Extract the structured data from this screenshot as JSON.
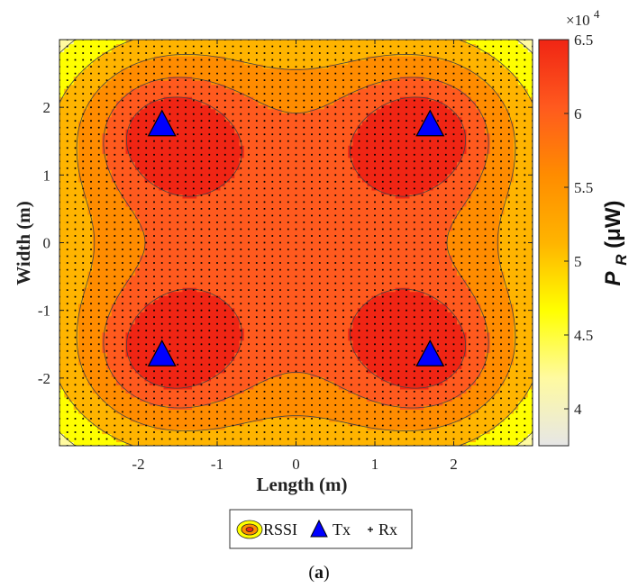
{
  "chart_data": {
    "type": "heatmap",
    "title": "",
    "subtitle": "",
    "xlabel": "Length (m)",
    "ylabel": "Width (m)",
    "xlim": [
      -3,
      3
    ],
    "ylim": [
      -3,
      3
    ],
    "xticks": [
      -2,
      -1,
      0,
      1,
      2
    ],
    "yticks": [
      2,
      1,
      0,
      -1,
      -2
    ],
    "colorbar": {
      "label_main": "P",
      "label_sub": "R",
      "label_unit": " (μW)",
      "multiplier": "×10",
      "multiplier_exp": "4",
      "range": [
        3.75,
        6.5
      ],
      "ticks": [
        4,
        4.5,
        5,
        5.5,
        6,
        6.5
      ],
      "tick_labels": [
        "4",
        "4.5",
        "5",
        "5.5",
        "6",
        "6.5"
      ],
      "colors": [
        "#e6e6e6",
        "#fffaa0",
        "#ffff00",
        "#ffb400",
        "#ff8c00",
        "#ff5a1e",
        "#f02514"
      ]
    },
    "contour_levels": [
      4.0,
      4.5,
      5.0,
      5.5,
      5.9
    ],
    "transmitters": [
      {
        "x": -1.7,
        "y": 1.7
      },
      {
        "x": 1.7,
        "y": 1.7
      },
      {
        "x": -1.7,
        "y": -1.7
      },
      {
        "x": 1.7,
        "y": -1.7
      }
    ],
    "receiver_grid": {
      "spacing": 0.1,
      "x_range": [
        -3,
        3
      ],
      "y_range": [
        -3,
        3
      ]
    },
    "legend": {
      "placement": "bottom-center",
      "entries": [
        {
          "label": "RSSI",
          "symbol": "contour"
        },
        {
          "label": "Tx",
          "symbol": "triangle",
          "color": "#0000ff"
        },
        {
          "label": "Rx",
          "symbol": "plus"
        }
      ]
    },
    "caption_letter": "a",
    "caption_open": "(",
    "caption_close": ")",
    "grid": false
  }
}
